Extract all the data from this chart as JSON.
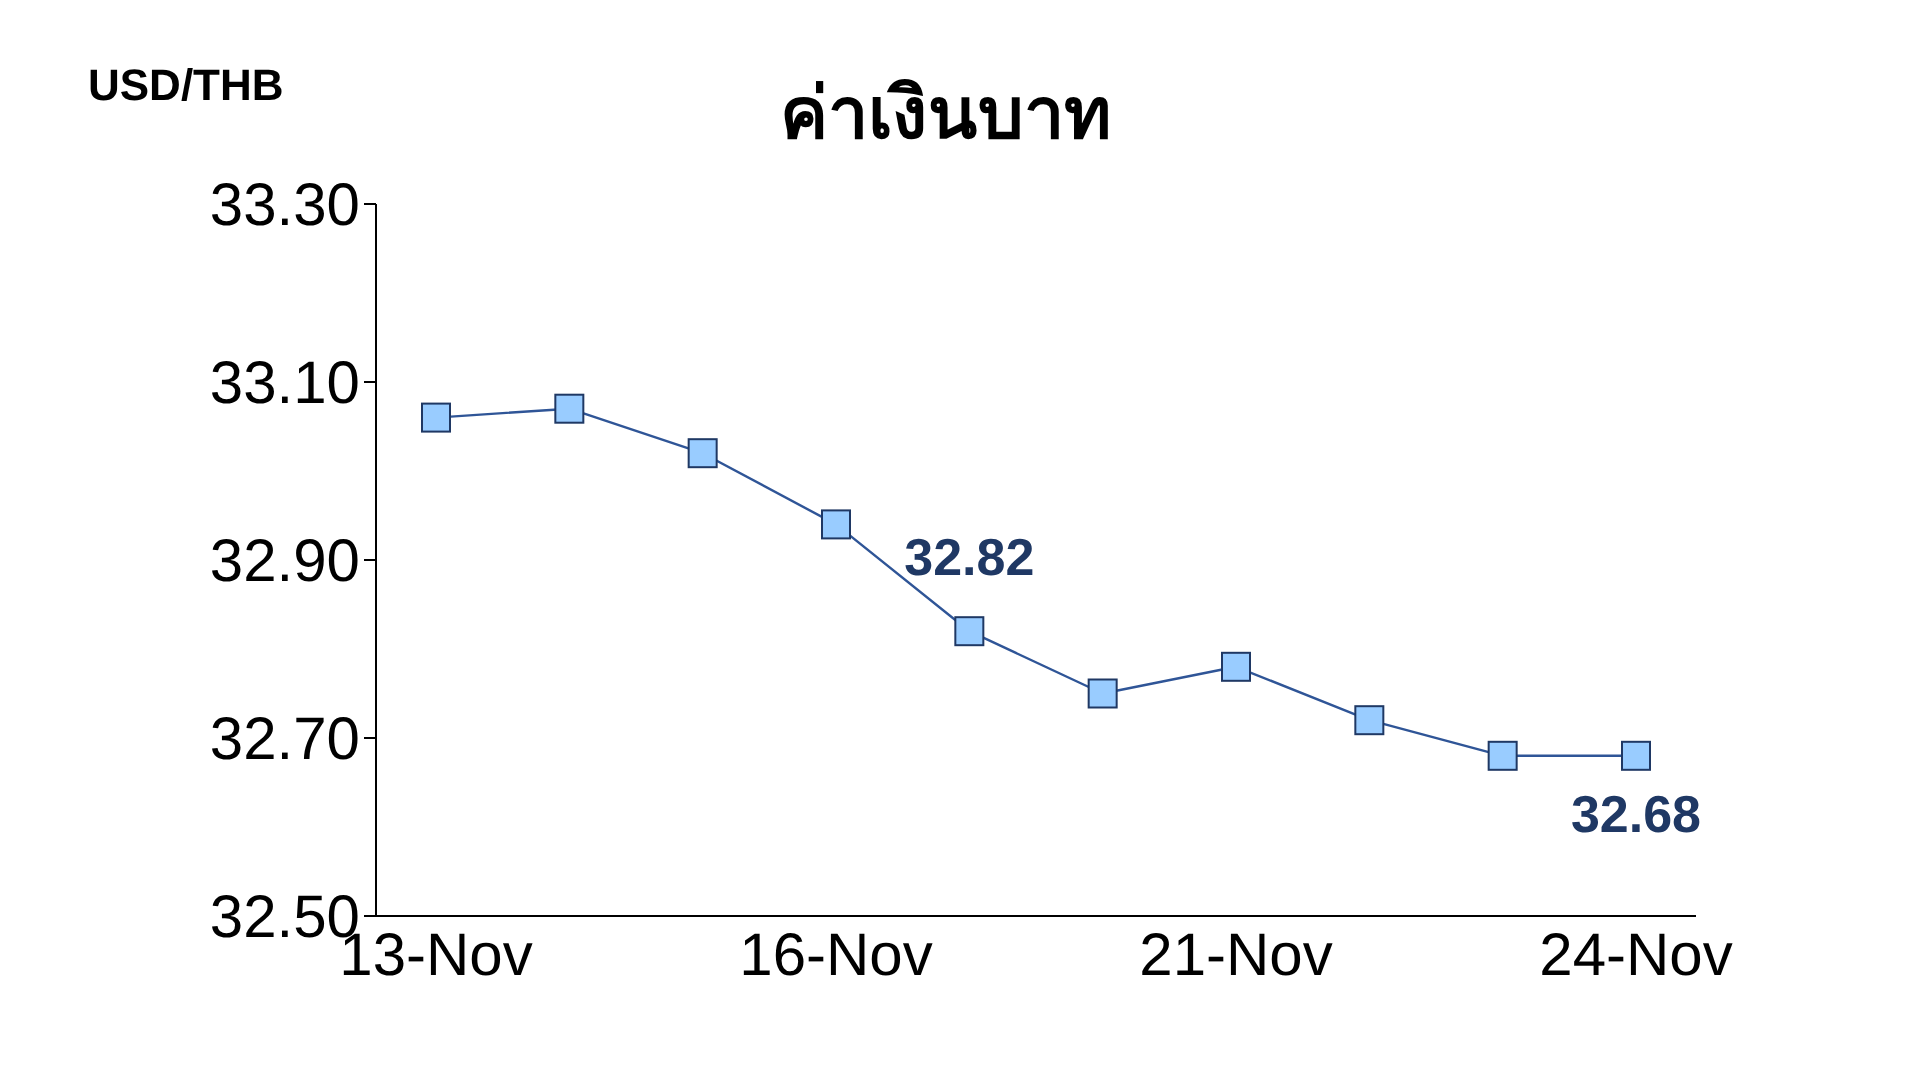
{
  "chart_data": {
    "type": "line",
    "title": "ค่าเงินบาท",
    "ylabel": "USD/THB",
    "categories": [
      "13-Nov",
      null,
      null,
      "16-Nov",
      null,
      null,
      "21-Nov",
      null,
      null,
      "24-Nov"
    ],
    "series": [
      {
        "color": "#2f5597",
        "values": [
          33.06,
          33.07,
          33.02,
          32.94,
          32.82,
          32.75,
          32.78,
          32.72,
          32.68,
          32.68
        ],
        "value_labels": [
          null,
          null,
          null,
          null,
          "32.82",
          null,
          null,
          null,
          null,
          "32.68"
        ]
      }
    ],
    "ylim": [
      32.5,
      33.3
    ],
    "yticks": [
      {
        "value": 32.5,
        "label": "32.50"
      },
      {
        "value": 32.7,
        "label": "32.70"
      },
      {
        "value": 32.9,
        "label": "32.90"
      },
      {
        "value": 33.1,
        "label": "33.10"
      },
      {
        "value": 33.3,
        "label": "33.30"
      }
    ],
    "marker": "square",
    "line_style": "solid"
  }
}
